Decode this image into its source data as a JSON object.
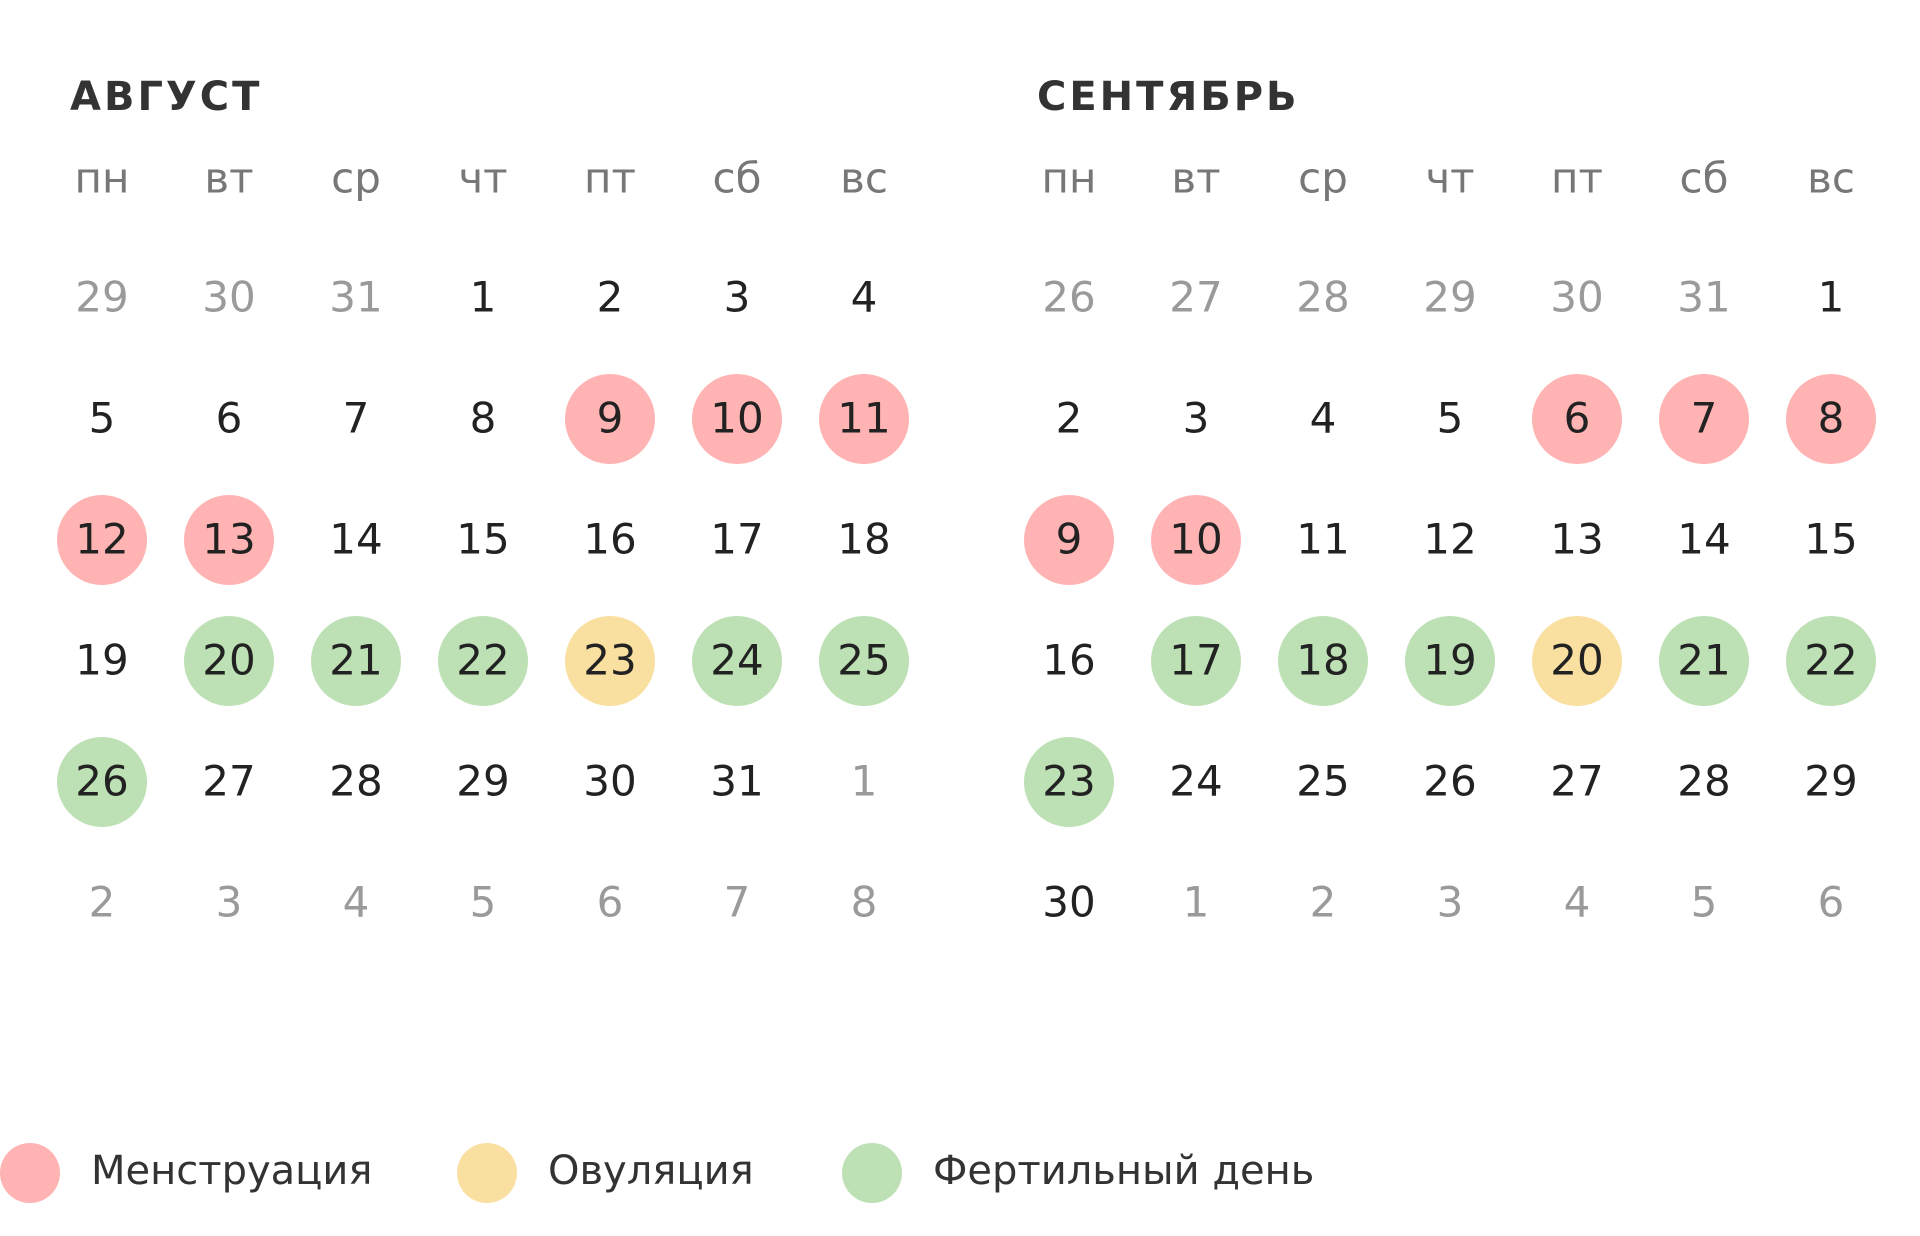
{
  "muted_color": "#9a9a9a",
  "text_color": "#222222",
  "legend": [
    {
      "label": "Менструация",
      "color": "#ffb3b3"
    },
    {
      "label": "Овуляция",
      "color": "#f9dfa0"
    },
    {
      "label": "Фертильный день",
      "color": "#bde0b5"
    }
  ],
  "months": [
    {
      "title": "АВГУСТ",
      "weekdays": [
        {
          "label": "пн"
        },
        {
          "label": "вт"
        },
        {
          "label": "ср"
        },
        {
          "label": "чт"
        },
        {
          "label": "пт"
        },
        {
          "label": "сб",
          "color": "#c0393b"
        },
        {
          "label": "вс",
          "color": "#c0393b"
        }
      ],
      "weeks": [
        [
          {
            "d": 29,
            "muted": true
          },
          {
            "d": 30,
            "muted": true
          },
          {
            "d": 31,
            "muted": true
          },
          {
            "d": 1
          },
          {
            "d": 2
          },
          {
            "d": 3
          },
          {
            "d": 4
          }
        ],
        [
          {
            "d": 5
          },
          {
            "d": 6
          },
          {
            "d": 7
          },
          {
            "d": 8
          },
          {
            "d": 9,
            "mark": 0
          },
          {
            "d": 10,
            "mark": 0
          },
          {
            "d": 11,
            "mark": 0
          }
        ],
        [
          {
            "d": 12,
            "mark": 0
          },
          {
            "d": 13,
            "mark": 0
          },
          {
            "d": 14
          },
          {
            "d": 15
          },
          {
            "d": 16
          },
          {
            "d": 17
          },
          {
            "d": 18
          }
        ],
        [
          {
            "d": 19
          },
          {
            "d": 20,
            "mark": 2
          },
          {
            "d": 21,
            "mark": 2
          },
          {
            "d": 22,
            "mark": 2
          },
          {
            "d": 23,
            "mark": 1
          },
          {
            "d": 24,
            "mark": 2
          },
          {
            "d": 25,
            "mark": 2
          }
        ],
        [
          {
            "d": 26,
            "mark": 2
          },
          {
            "d": 27
          },
          {
            "d": 28
          },
          {
            "d": 29
          },
          {
            "d": 30
          },
          {
            "d": 31
          },
          {
            "d": 1,
            "muted": true
          }
        ],
        [
          {
            "d": 2,
            "muted": true
          },
          {
            "d": 3,
            "muted": true
          },
          {
            "d": 4,
            "muted": true
          },
          {
            "d": 5,
            "muted": true
          },
          {
            "d": 6,
            "muted": true
          },
          {
            "d": 7,
            "muted": true
          },
          {
            "d": 8,
            "muted": true
          }
        ]
      ]
    },
    {
      "title": "СЕНТЯБРЬ",
      "weekdays": [
        {
          "label": "пн"
        },
        {
          "label": "вт"
        },
        {
          "label": "ср"
        },
        {
          "label": "чт"
        },
        {
          "label": "пт"
        },
        {
          "label": "сб",
          "color": "#c0393b"
        },
        {
          "label": "вс",
          "color": "#c0393b"
        }
      ],
      "weeks": [
        [
          {
            "d": 26,
            "muted": true
          },
          {
            "d": 27,
            "muted": true
          },
          {
            "d": 28,
            "muted": true
          },
          {
            "d": 29,
            "muted": true
          },
          {
            "d": 30,
            "muted": true
          },
          {
            "d": 31,
            "muted": true
          },
          {
            "d": 1
          }
        ],
        [
          {
            "d": 2
          },
          {
            "d": 3
          },
          {
            "d": 4
          },
          {
            "d": 5
          },
          {
            "d": 6,
            "mark": 0
          },
          {
            "d": 7,
            "mark": 0
          },
          {
            "d": 8,
            "mark": 0
          }
        ],
        [
          {
            "d": 9,
            "mark": 0
          },
          {
            "d": 10,
            "mark": 0
          },
          {
            "d": 11
          },
          {
            "d": 12
          },
          {
            "d": 13
          },
          {
            "d": 14
          },
          {
            "d": 15
          }
        ],
        [
          {
            "d": 16
          },
          {
            "d": 17,
            "mark": 2
          },
          {
            "d": 18,
            "mark": 2
          },
          {
            "d": 19,
            "mark": 2
          },
          {
            "d": 20,
            "mark": 1
          },
          {
            "d": 21,
            "mark": 2
          },
          {
            "d": 22,
            "mark": 2
          }
        ],
        [
          {
            "d": 23,
            "mark": 2
          },
          {
            "d": 24
          },
          {
            "d": 25
          },
          {
            "d": 26
          },
          {
            "d": 27
          },
          {
            "d": 28
          },
          {
            "d": 29
          }
        ],
        [
          {
            "d": 30
          },
          {
            "d": 1,
            "muted": true
          },
          {
            "d": 2,
            "muted": true
          },
          {
            "d": 3,
            "muted": true
          },
          {
            "d": 4,
            "muted": true
          },
          {
            "d": 5,
            "muted": true
          },
          {
            "d": 6,
            "muted": true
          }
        ]
      ]
    }
  ]
}
